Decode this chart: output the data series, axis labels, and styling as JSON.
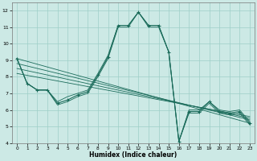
{
  "xlabel": "Humidex (Indice chaleur)",
  "xlim": [
    -0.5,
    23.5
  ],
  "ylim": [
    4,
    12.5
  ],
  "yticks": [
    4,
    5,
    6,
    7,
    8,
    9,
    10,
    11,
    12
  ],
  "xticks": [
    0,
    1,
    2,
    3,
    4,
    5,
    6,
    7,
    8,
    9,
    10,
    11,
    12,
    13,
    14,
    15,
    16,
    17,
    18,
    19,
    20,
    21,
    22,
    23
  ],
  "bg_color": "#cce9e5",
  "line_color": "#1a6b5a",
  "grid_color": "#9ecfc7",
  "main_x": [
    0,
    1,
    2,
    3,
    4,
    5,
    6,
    7,
    8,
    9,
    10,
    11,
    12,
    13,
    14,
    15,
    16,
    17,
    18,
    19,
    20,
    21,
    22,
    23
  ],
  "main_y": [
    9.1,
    7.6,
    7.2,
    7.2,
    6.4,
    6.6,
    6.9,
    7.1,
    8.1,
    9.2,
    11.1,
    11.1,
    11.9,
    11.1,
    11.1,
    9.5,
    4.1,
    5.9,
    5.9,
    6.5,
    5.9,
    5.8,
    5.9,
    5.2
  ],
  "trend_lines": [
    {
      "x": [
        0,
        23
      ],
      "y": [
        9.1,
        5.2
      ]
    },
    {
      "x": [
        0,
        23
      ],
      "y": [
        8.8,
        5.4
      ]
    },
    {
      "x": [
        0,
        23
      ],
      "y": [
        8.5,
        5.5
      ]
    },
    {
      "x": [
        0,
        23
      ],
      "y": [
        8.2,
        5.6
      ]
    }
  ],
  "extra_curves": [
    [
      9.1,
      7.6,
      7.2,
      7.2,
      6.5,
      6.8,
      7.0,
      7.2,
      8.2,
      9.3,
      11.1,
      11.1,
      11.9,
      11.1,
      11.1,
      9.5,
      4.1,
      6.0,
      6.0,
      6.5,
      6.0,
      5.9,
      6.0,
      5.3
    ],
    [
      9.1,
      7.6,
      7.2,
      7.2,
      6.3,
      6.5,
      6.8,
      7.0,
      8.0,
      9.1,
      11.0,
      11.0,
      11.9,
      11.0,
      11.0,
      9.5,
      4.1,
      5.8,
      5.8,
      6.4,
      5.8,
      5.7,
      5.8,
      5.1
    ]
  ]
}
